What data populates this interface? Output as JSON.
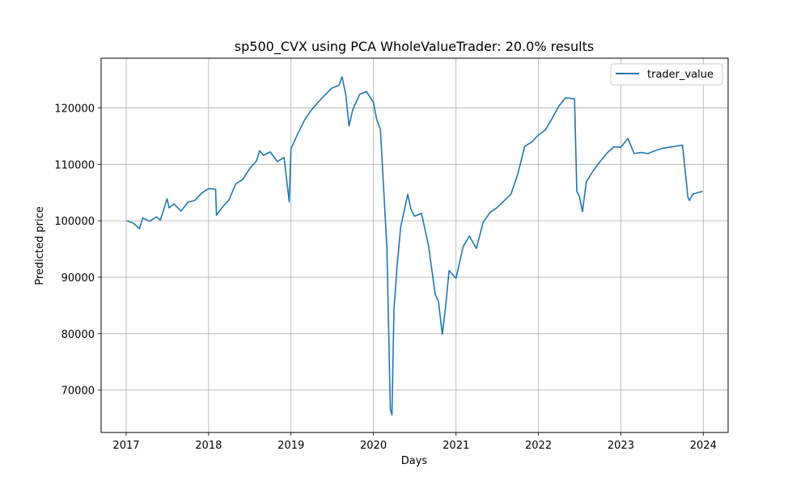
{
  "chart_data": {
    "type": "line",
    "title": "sp500_CVX using PCA WholeValueTrader: 20.0% results",
    "xlabel": "Days",
    "ylabel": "Predicted price",
    "xlim": [
      "2016-09-12",
      "2024-04-20"
    ],
    "ylim": [
      62500,
      128800
    ],
    "x_ticks": [
      "2017",
      "2018",
      "2019",
      "2020",
      "2021",
      "2022",
      "2023",
      "2024"
    ],
    "y_ticks": [
      70000,
      80000,
      90000,
      100000,
      110000,
      120000
    ],
    "grid": true,
    "legend_position": "top-right",
    "series": [
      {
        "name": "trader_value",
        "color": "#1f77b4",
        "points": [
          [
            "2017-01-03",
            100000
          ],
          [
            "2017-02-01",
            99600
          ],
          [
            "2017-03-01",
            98600
          ],
          [
            "2017-03-15",
            100500
          ],
          [
            "2017-04-15",
            99900
          ],
          [
            "2017-05-15",
            100700
          ],
          [
            "2017-06-01",
            100100
          ],
          [
            "2017-06-15",
            101800
          ],
          [
            "2017-07-01",
            103900
          ],
          [
            "2017-07-10",
            102300
          ],
          [
            "2017-08-01",
            103000
          ],
          [
            "2017-09-01",
            101700
          ],
          [
            "2017-10-01",
            103300
          ],
          [
            "2017-11-01",
            103600
          ],
          [
            "2017-12-01",
            104900
          ],
          [
            "2018-01-01",
            105700
          ],
          [
            "2018-02-01",
            105600
          ],
          [
            "2018-02-05",
            101000
          ],
          [
            "2018-03-01",
            102300
          ],
          [
            "2018-04-01",
            103700
          ],
          [
            "2018-05-01",
            106500
          ],
          [
            "2018-06-01",
            107300
          ],
          [
            "2018-07-01",
            109200
          ],
          [
            "2018-08-01",
            110600
          ],
          [
            "2018-08-15",
            112400
          ],
          [
            "2018-09-01",
            111600
          ],
          [
            "2018-10-01",
            112200
          ],
          [
            "2018-11-01",
            110500
          ],
          [
            "2018-12-01",
            111200
          ],
          [
            "2018-12-24",
            103400
          ],
          [
            "2019-01-01",
            112800
          ],
          [
            "2019-02-01",
            115500
          ],
          [
            "2019-03-01",
            117800
          ],
          [
            "2019-04-01",
            119600
          ],
          [
            "2019-05-01",
            121000
          ],
          [
            "2019-06-01",
            122300
          ],
          [
            "2019-07-01",
            123500
          ],
          [
            "2019-08-01",
            124000
          ],
          [
            "2019-08-15",
            125500
          ],
          [
            "2019-09-01",
            122300
          ],
          [
            "2019-09-15",
            116800
          ],
          [
            "2019-10-01",
            119600
          ],
          [
            "2019-11-01",
            122400
          ],
          [
            "2019-12-01",
            122900
          ],
          [
            "2020-01-01",
            121000
          ],
          [
            "2020-01-15",
            118000
          ],
          [
            "2020-02-01",
            116200
          ],
          [
            "2020-02-20",
            102400
          ],
          [
            "2020-03-01",
            95100
          ],
          [
            "2020-03-16",
            66600
          ],
          [
            "2020-03-23",
            65600
          ],
          [
            "2020-04-01",
            84400
          ],
          [
            "2020-04-15",
            92100
          ],
          [
            "2020-05-01",
            98900
          ],
          [
            "2020-06-01",
            104700
          ],
          [
            "2020-06-15",
            102100
          ],
          [
            "2020-07-01",
            100800
          ],
          [
            "2020-08-01",
            101300
          ],
          [
            "2020-09-01",
            95600
          ],
          [
            "2020-10-01",
            86900
          ],
          [
            "2020-10-15",
            85800
          ],
          [
            "2020-11-01",
            79900
          ],
          [
            "2020-11-15",
            84500
          ],
          [
            "2020-12-01",
            91200
          ],
          [
            "2021-01-01",
            89800
          ],
          [
            "2021-02-01",
            95400
          ],
          [
            "2021-03-01",
            97300
          ],
          [
            "2021-04-01",
            95100
          ],
          [
            "2021-05-01",
            99700
          ],
          [
            "2021-06-01",
            101500
          ],
          [
            "2021-07-01",
            102300
          ],
          [
            "2021-08-01",
            103500
          ],
          [
            "2021-09-01",
            104700
          ],
          [
            "2021-10-01",
            108200
          ],
          [
            "2021-11-01",
            113200
          ],
          [
            "2021-12-01",
            113900
          ],
          [
            "2022-01-01",
            115200
          ],
          [
            "2022-02-01",
            116100
          ],
          [
            "2022-03-01",
            118000
          ],
          [
            "2022-04-01",
            120300
          ],
          [
            "2022-05-01",
            121800
          ],
          [
            "2022-06-10",
            121600
          ],
          [
            "2022-06-20",
            105200
          ],
          [
            "2022-07-01",
            104400
          ],
          [
            "2022-07-15",
            101600
          ],
          [
            "2022-08-01",
            106900
          ],
          [
            "2022-09-01",
            108900
          ],
          [
            "2022-10-01",
            110500
          ],
          [
            "2022-11-01",
            112000
          ],
          [
            "2022-12-01",
            113100
          ],
          [
            "2023-01-01",
            113000
          ],
          [
            "2023-02-01",
            114600
          ],
          [
            "2023-03-01",
            111900
          ],
          [
            "2023-04-01",
            112100
          ],
          [
            "2023-05-01",
            111900
          ],
          [
            "2023-06-01",
            112400
          ],
          [
            "2023-07-01",
            112800
          ],
          [
            "2023-08-01",
            113000
          ],
          [
            "2023-09-01",
            113200
          ],
          [
            "2023-10-01",
            113400
          ],
          [
            "2023-10-25",
            104200
          ],
          [
            "2023-11-01",
            103600
          ],
          [
            "2023-11-15",
            104700
          ],
          [
            "2023-12-01",
            104900
          ],
          [
            "2023-12-29",
            105200
          ]
        ]
      }
    ]
  }
}
